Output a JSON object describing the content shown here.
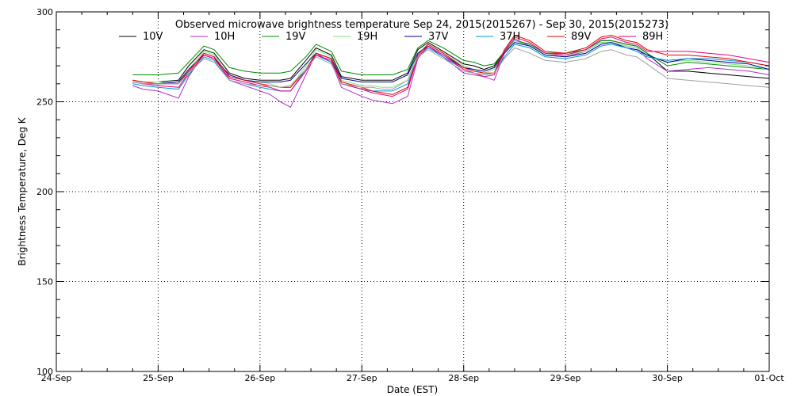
{
  "chart_data": {
    "type": "line",
    "title": "Observed microwave brightness temperature Sep 24, 2015(2015267) - Sep 30, 2015(2015273)",
    "xlabel": "Date (EST)",
    "ylabel": "Brightness Temperature, Deg K",
    "xlim": [
      0,
      7
    ],
    "ylim": [
      100,
      300
    ],
    "grid": true,
    "legend_position": "top",
    "x_ticks": [
      {
        "x": 0,
        "label": "24-Sep"
      },
      {
        "x": 1,
        "label": "25-Sep"
      },
      {
        "x": 2,
        "label": "26-Sep"
      },
      {
        "x": 3,
        "label": "27-Sep"
      },
      {
        "x": 4,
        "label": "28-Sep"
      },
      {
        "x": 5,
        "label": "29-Sep"
      },
      {
        "x": 6,
        "label": "30-Sep"
      },
      {
        "x": 7,
        "label": "01-Oct"
      }
    ],
    "y_ticks": [
      {
        "y": 100,
        "label": "100"
      },
      {
        "y": 150,
        "label": "150"
      },
      {
        "y": 200,
        "label": "200"
      },
      {
        "y": 250,
        "label": "250"
      },
      {
        "y": 300,
        "label": "300"
      }
    ],
    "x": [
      0.75,
      0.85,
      1.0,
      1.2,
      1.3,
      1.45,
      1.55,
      1.7,
      1.85,
      2.0,
      2.1,
      2.2,
      2.3,
      2.45,
      2.55,
      2.7,
      2.8,
      3.0,
      3.1,
      3.2,
      3.3,
      3.45,
      3.55,
      3.65,
      3.8,
      4.0,
      4.1,
      4.2,
      4.3,
      4.4,
      4.5,
      4.65,
      4.8,
      5.0,
      5.2,
      5.35,
      5.45,
      5.6,
      5.7,
      5.8,
      6.0,
      6.2,
      6.4,
      6.6,
      6.8,
      7.0
    ],
    "series": [
      {
        "name": "10V",
        "color": "#000000",
        "values": [
          262,
          261,
          261,
          262,
          270,
          279,
          277,
          266,
          263,
          262,
          262,
          262,
          263,
          273,
          280,
          276,
          264,
          262,
          262,
          262,
          262,
          266,
          279,
          283,
          278,
          271,
          270,
          268,
          270,
          278,
          284,
          282,
          277,
          277,
          279,
          284,
          284,
          282,
          281,
          277,
          267,
          267,
          266,
          265,
          264,
          263
        ]
      },
      {
        "name": "10H",
        "color": "#b030c8",
        "values": [
          259,
          257,
          256,
          252,
          264,
          277,
          275,
          262,
          259,
          256,
          254,
          250,
          247,
          265,
          277,
          272,
          258,
          253,
          251,
          250,
          249,
          253,
          274,
          281,
          275,
          266,
          265,
          264,
          262,
          277,
          285,
          281,
          276,
          275,
          278,
          283,
          283,
          281,
          280,
          274,
          267,
          268,
          269,
          268,
          267,
          265
        ]
      },
      {
        "name": "19V",
        "color": "#008c00",
        "values": [
          265,
          265,
          265,
          266,
          272,
          281,
          279,
          269,
          267,
          266,
          266,
          266,
          267,
          275,
          282,
          278,
          267,
          265,
          265,
          265,
          265,
          268,
          280,
          284,
          280,
          273,
          272,
          270,
          271,
          278,
          284,
          282,
          277,
          277,
          279,
          284,
          284,
          282,
          281,
          277,
          270,
          272,
          271,
          270,
          269,
          268
        ]
      },
      {
        "name": "19H",
        "color": "#80e680",
        "values": [
          262,
          261,
          261,
          260,
          268,
          278,
          276,
          264,
          262,
          261,
          260,
          258,
          258,
          270,
          279,
          275,
          262,
          259,
          259,
          258,
          258,
          262,
          277,
          282,
          277,
          270,
          268,
          266,
          268,
          277,
          284,
          281,
          276,
          276,
          278,
          283,
          283,
          281,
          280,
          276,
          272,
          273,
          272,
          271,
          270,
          268
        ]
      },
      {
        "name": "37V",
        "color": "#000096",
        "values": [
          261,
          260,
          260,
          261,
          268,
          276,
          274,
          265,
          262,
          261,
          261,
          261,
          262,
          271,
          277,
          274,
          263,
          261,
          261,
          261,
          261,
          265,
          277,
          281,
          276,
          269,
          268,
          267,
          269,
          277,
          283,
          281,
          276,
          275,
          277,
          282,
          283,
          280,
          279,
          276,
          272,
          274,
          273,
          272,
          271,
          268
        ]
      },
      {
        "name": "37H",
        "color": "#0096dc",
        "values": [
          260,
          259,
          258,
          257,
          265,
          275,
          273,
          262,
          260,
          258,
          257,
          256,
          256,
          268,
          276,
          272,
          260,
          257,
          256,
          256,
          256,
          260,
          275,
          280,
          275,
          268,
          266,
          265,
          266,
          275,
          282,
          280,
          275,
          274,
          276,
          281,
          282,
          280,
          278,
          275,
          273,
          274,
          274,
          273,
          272,
          270
        ]
      },
      {
        "name": "89V",
        "color": "#e60000",
        "values": [
          262,
          261,
          260,
          260,
          267,
          277,
          275,
          264,
          262,
          260,
          259,
          258,
          258,
          268,
          277,
          274,
          261,
          258,
          256,
          255,
          254,
          258,
          276,
          282,
          277,
          269,
          267,
          266,
          266,
          279,
          287,
          284,
          278,
          277,
          280,
          286,
          287,
          284,
          283,
          279,
          276,
          276,
          275,
          274,
          272,
          270
        ]
      },
      {
        "name": "89H",
        "color": "#e6007c",
        "values": [
          261,
          260,
          259,
          258,
          266,
          276,
          274,
          263,
          261,
          259,
          258,
          256,
          256,
          267,
          276,
          273,
          260,
          257,
          255,
          254,
          253,
          257,
          275,
          281,
          276,
          268,
          266,
          264,
          265,
          278,
          286,
          283,
          277,
          276,
          279,
          285,
          286,
          283,
          282,
          278,
          278,
          278,
          277,
          276,
          274,
          272
        ]
      },
      {
        "name": "",
        "color": "#a0a0a0",
        "values": [
          261,
          260,
          260,
          260,
          266,
          274,
          272,
          262,
          260,
          259,
          259,
          258,
          259,
          268,
          275,
          271,
          260,
          258,
          258,
          257,
          257,
          262,
          275,
          279,
          274,
          267,
          266,
          265,
          266,
          274,
          280,
          277,
          273,
          272,
          274,
          278,
          279,
          276,
          275,
          271,
          263,
          262,
          261,
          260,
          259,
          258
        ]
      }
    ]
  }
}
